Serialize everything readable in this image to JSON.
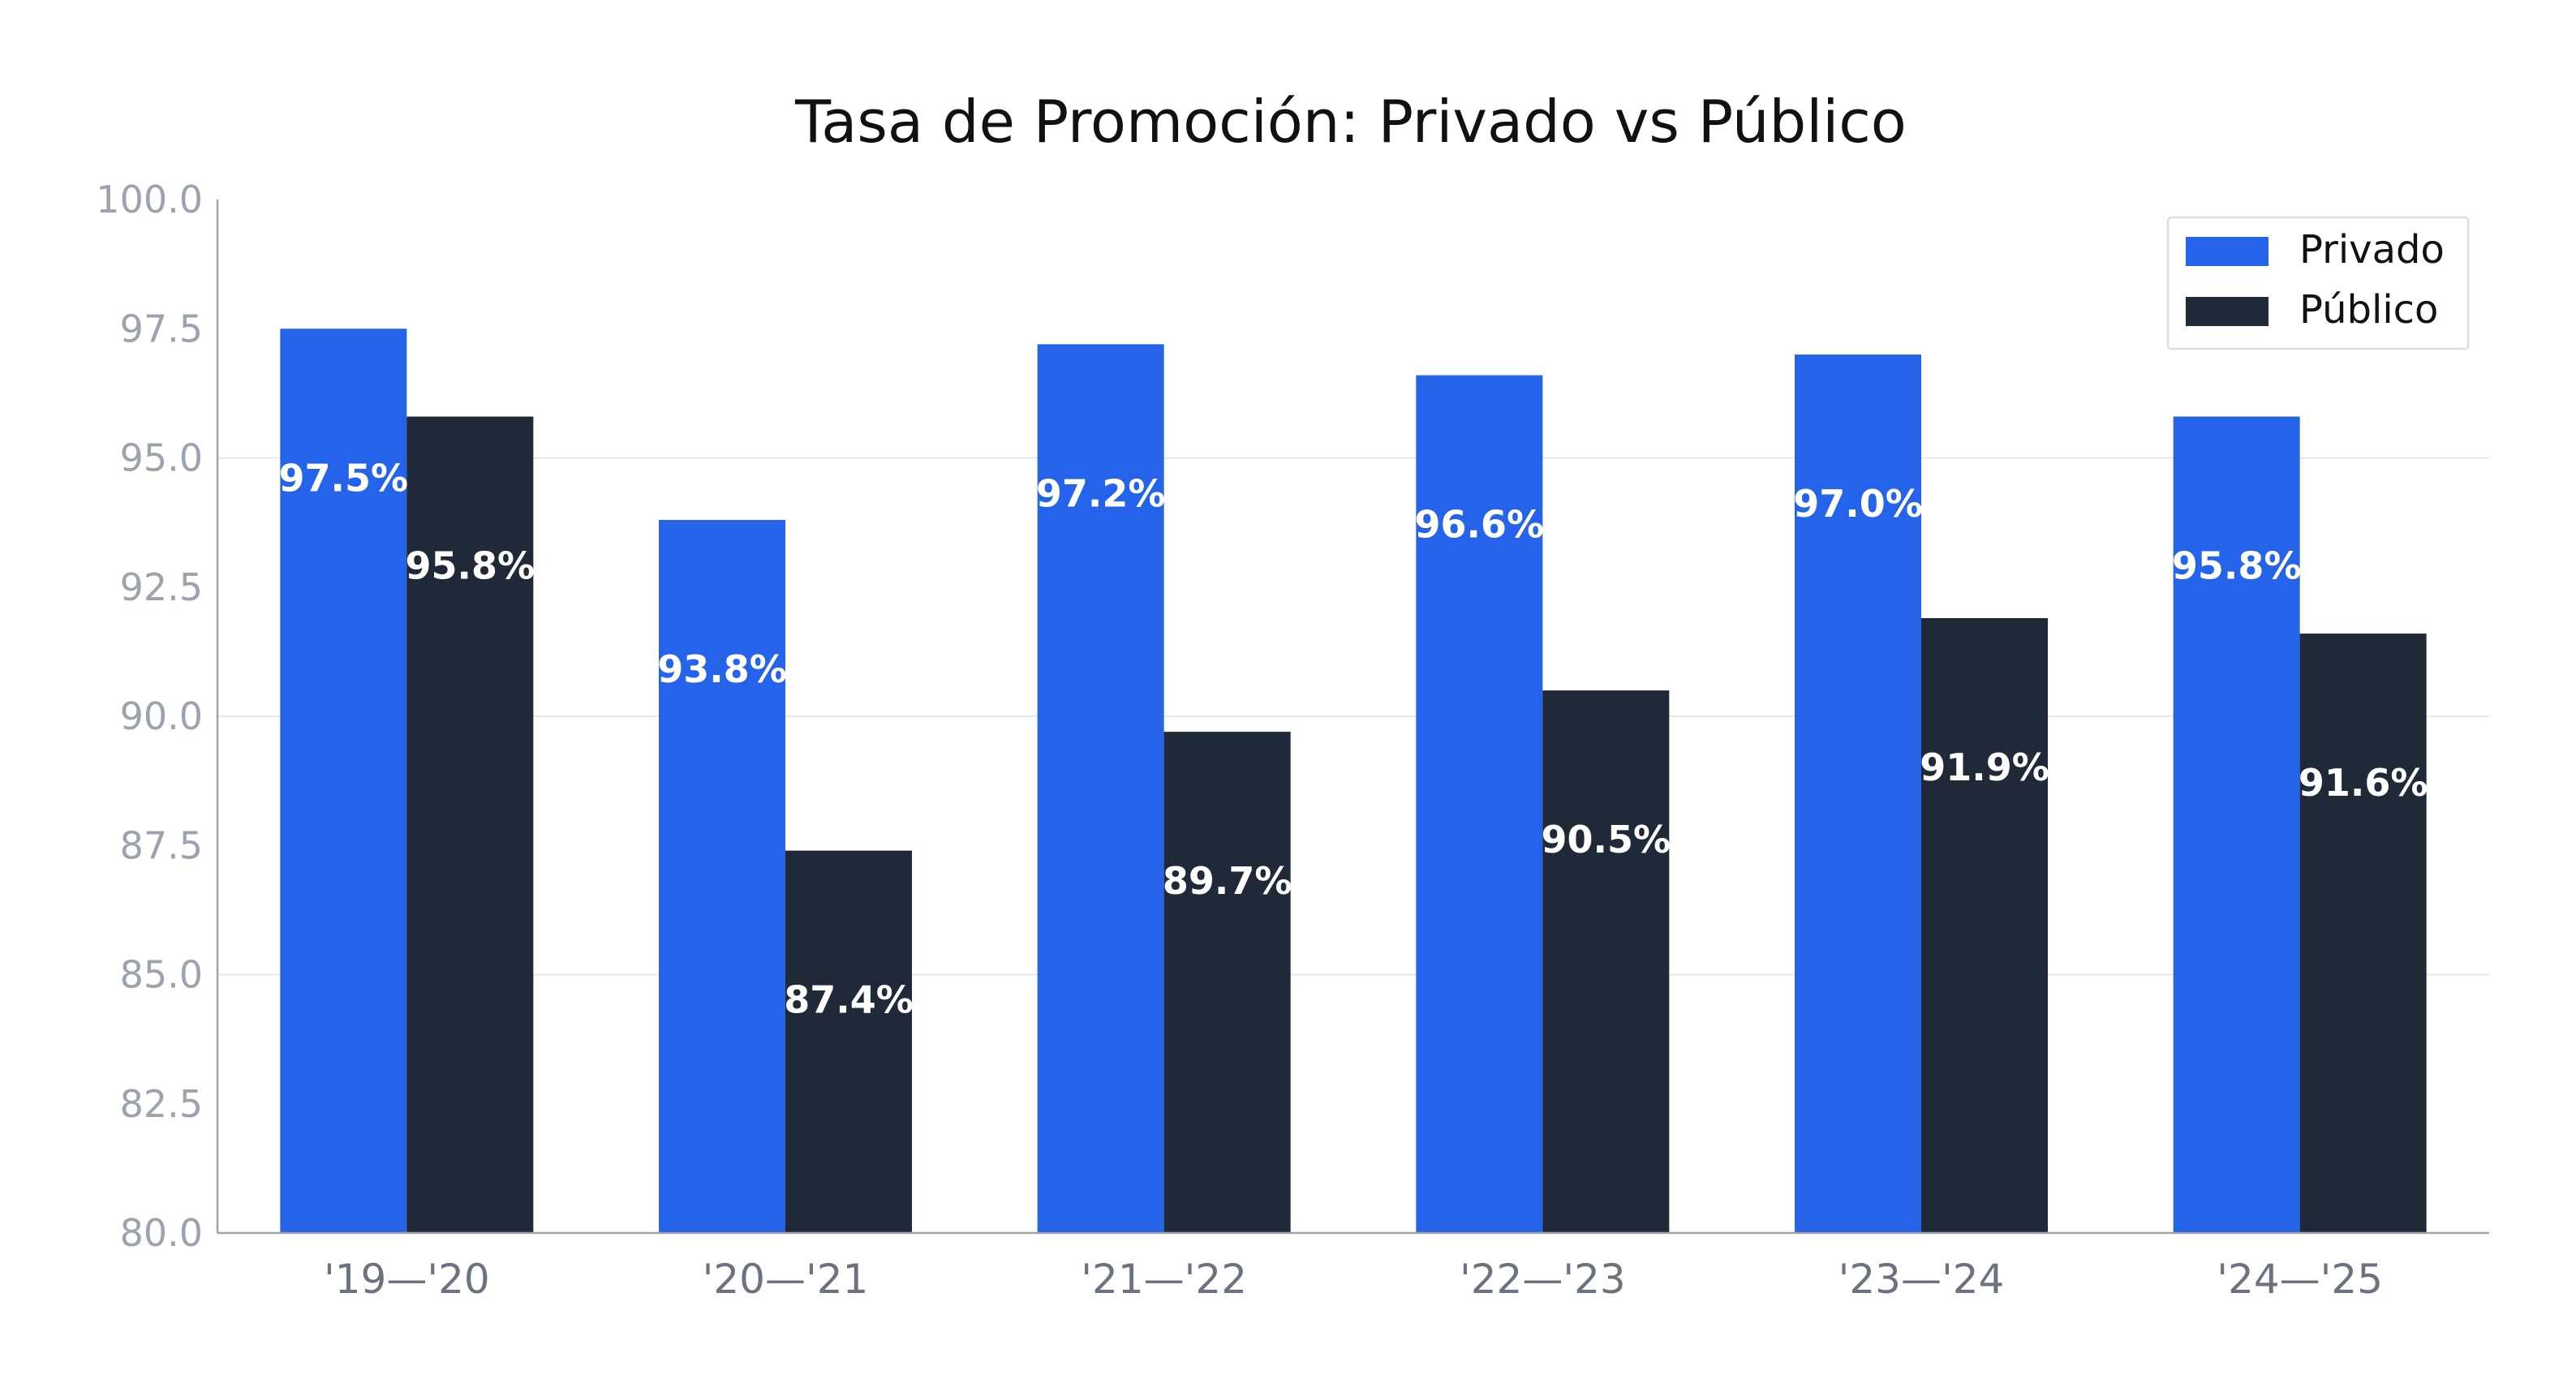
{
  "chart_data": {
    "type": "bar",
    "title": "Tasa de Promoción: Privado vs Público",
    "xlabel": "",
    "ylabel": "",
    "categories": [
      "'19—'20",
      "'20—'21",
      "'21—'22",
      "'22—'23",
      "'23—'24",
      "'24—'25"
    ],
    "series": [
      {
        "name": "Privado",
        "color": "#2563eb",
        "values": [
          97.5,
          93.8,
          97.2,
          96.6,
          97.0,
          95.8
        ],
        "labels": [
          "97.5%",
          "93.8%",
          "97.2%",
          "96.6%",
          "97.0%",
          "95.8%"
        ]
      },
      {
        "name": "Público",
        "color": "#1f2937",
        "values": [
          95.8,
          87.4,
          89.7,
          90.5,
          91.9,
          91.6
        ],
        "labels": [
          "95.8%",
          "87.4%",
          "89.7%",
          "90.5%",
          "91.9%",
          "91.6%"
        ]
      }
    ],
    "ylim": [
      80,
      100
    ],
    "yticks": [
      "80.0",
      "82.5",
      "85.0",
      "87.5",
      "90.0",
      "92.5",
      "95.0",
      "97.5",
      "100.0"
    ],
    "ytick_values": [
      80,
      82.5,
      85,
      87.5,
      90,
      92.5,
      95,
      97.5,
      100
    ],
    "grid": true,
    "legend": "top-right",
    "data_label_color": "#ffffff",
    "axis_color": "#9ca3af",
    "grid_color": "#e5e7eb",
    "tick_label_color": "#9ca3af",
    "category_label_color": "#6b7280"
  }
}
